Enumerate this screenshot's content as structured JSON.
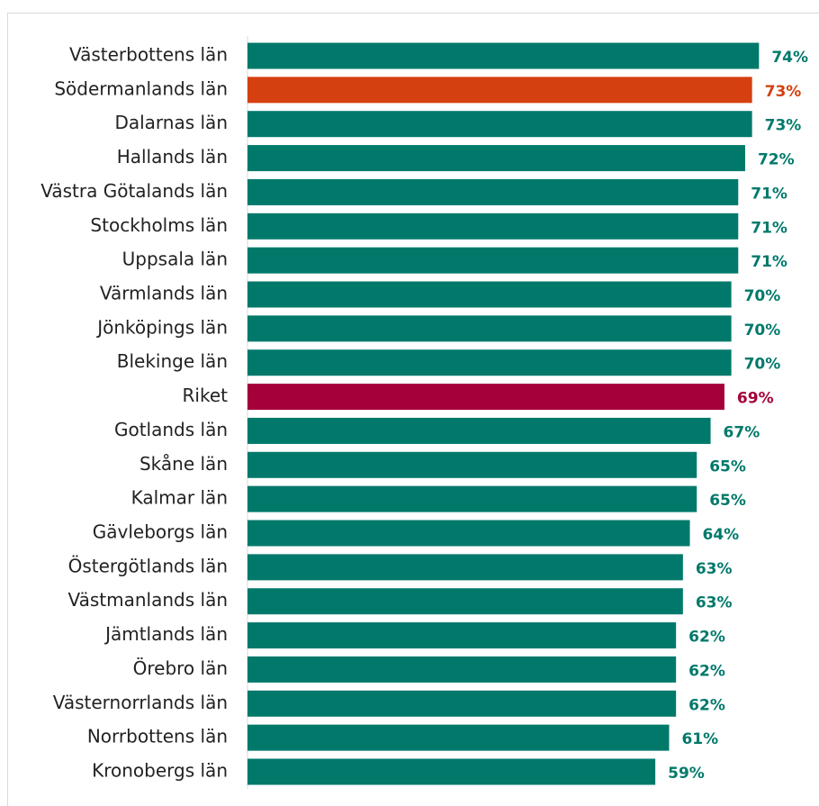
{
  "chart_data": {
    "type": "bar",
    "orientation": "horizontal",
    "categories": [
      "Västerbottens län",
      "Södermanlands län",
      "Dalarnas län",
      "Hallands län",
      "Västra Götalands län",
      "Stockholms län",
      "Uppsala län",
      "Värmlands län",
      "Jönköpings län",
      "Blekinge län",
      "Riket",
      "Gotlands län",
      "Skåne län",
      "Kalmar län",
      "Gävleborgs län",
      "Östergötlands län",
      "Västmanlands län",
      "Jämtlands län",
      "Örebro län",
      "Västernorrlands län",
      "Norrbottens län",
      "Kronobergs län"
    ],
    "values": [
      74,
      73,
      73,
      72,
      71,
      71,
      71,
      70,
      70,
      70,
      69,
      67,
      65,
      65,
      64,
      63,
      63,
      62,
      62,
      62,
      61,
      59
    ],
    "value_labels": [
      "74%",
      "73%",
      "73%",
      "72%",
      "71%",
      "71%",
      "71%",
      "70%",
      "70%",
      "70%",
      "69%",
      "67%",
      "65%",
      "65%",
      "64%",
      "63%",
      "63%",
      "62%",
      "62%",
      "62%",
      "61%",
      "59%"
    ],
    "colors": [
      "#00796b",
      "#d4400f",
      "#00796b",
      "#00796b",
      "#00796b",
      "#00796b",
      "#00796b",
      "#00796b",
      "#00796b",
      "#00796b",
      "#a5003a",
      "#00796b",
      "#00796b",
      "#00796b",
      "#00796b",
      "#00796b",
      "#00796b",
      "#00796b",
      "#00796b",
      "#00796b",
      "#00796b",
      "#00796b"
    ],
    "xlim": [
      0,
      80
    ]
  }
}
